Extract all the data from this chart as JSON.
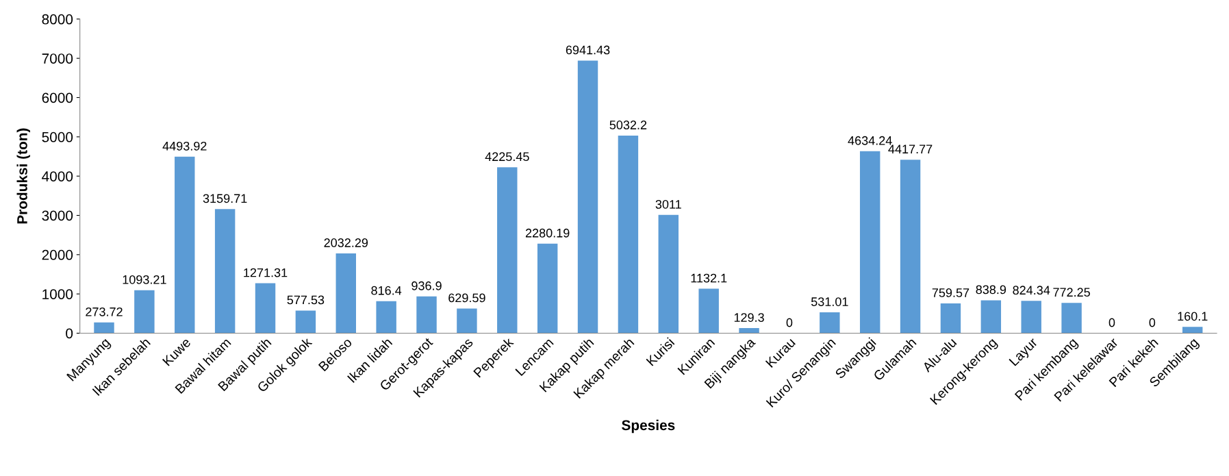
{
  "chart_data": {
    "type": "bar",
    "xlabel": "Spesies",
    "ylabel": "Produksi (ton)",
    "categories": [
      "Manyung",
      "Ikan sebelah",
      "Kuwe",
      "Bawal hitam",
      "Bawal putih",
      "Golok golok",
      "Beloso",
      "Ikan lidah",
      "Gerot-gerot",
      "Kapas-kapas",
      "Peperek",
      "Lencam",
      "Kakap putih",
      "Kakap merah",
      "Kurisi",
      "Kuniran",
      "Biji nangka",
      "Kurau",
      "Kuro/ Senangin",
      "Swanggi",
      "Gulamah",
      "Alu-alu",
      "Kerong-kerong",
      "Layur",
      "Pari kembang",
      "Pari kelelawar",
      "Pari kekeh",
      "Sembilang"
    ],
    "values": [
      273.72,
      1093.21,
      4493.92,
      3159.71,
      1271.31,
      577.53,
      2032.29,
      816.4,
      936.9,
      629.59,
      4225.45,
      2280.19,
      6941.43,
      5032.2,
      3011,
      1132.1,
      129.3,
      0,
      531.01,
      4634.24,
      4417.77,
      759.57,
      838.9,
      824.34,
      772.25,
      0,
      0,
      160.1
    ],
    "color": "#5b9bd5",
    "data_labels": true,
    "ylim": [
      0,
      8000
    ],
    "yticks": [
      0,
      1000,
      2000,
      3000,
      4000,
      5000,
      6000,
      7000,
      8000
    ],
    "grid": false
  }
}
